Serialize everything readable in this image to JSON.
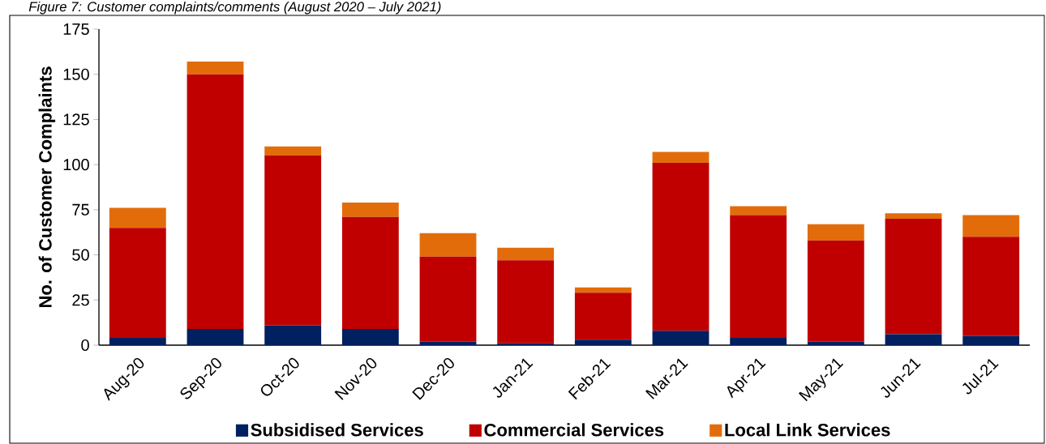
{
  "chart_data": {
    "type": "bar",
    "stacked": true,
    "title": "Figure 7: Customer complaints/comments (August 2020 – July 2021)",
    "ylabel": "No. of Customer Complaints",
    "categories": [
      "Aug-20",
      "Sep-20",
      "Oct-20",
      "Nov-20",
      "Dec-20",
      "Jan-21",
      "Feb-21",
      "Mar-21",
      "Apr-21",
      "May-21",
      "Jun-21",
      "Jul-21"
    ],
    "series": [
      {
        "name": "Subsidised Services",
        "color": "#002060",
        "values": [
          4,
          9,
          11,
          9,
          2,
          1,
          3,
          8,
          4,
          2,
          6,
          5
        ]
      },
      {
        "name": "Commercial Services",
        "color": "#c00000",
        "values": [
          61,
          141,
          94,
          62,
          47,
          46,
          26,
          93,
          68,
          56,
          64,
          55
        ]
      },
      {
        "name": "Local Link Services",
        "color": "#e36c0a",
        "values": [
          11,
          7,
          5,
          8,
          13,
          7,
          3,
          6,
          5,
          9,
          3,
          12
        ]
      }
    ],
    "ylim": [
      0,
      175
    ],
    "yticks": [
      0,
      25,
      50,
      75,
      100,
      125,
      150,
      175
    ],
    "legend": "bottom"
  }
}
